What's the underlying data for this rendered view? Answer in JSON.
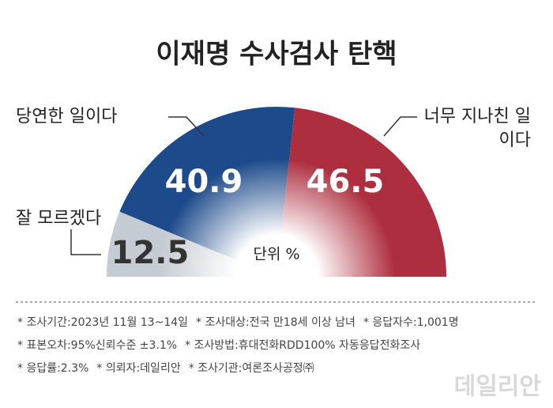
{
  "chart_data": {
    "type": "half-donut",
    "title": "이재명 수사검사 탄핵",
    "categories": [
      "잘 모르겠다",
      "당연한 일이다",
      "너무 지나친 일이다"
    ],
    "values": [
      12.5,
      40.9,
      46.5
    ],
    "colors": [
      "#c5cbd2",
      "#1d4a8a",
      "#ad2e3e"
    ],
    "unit_label": "단위 %",
    "notes": [
      [
        "* 조사기간:2023년 11월 13~14일",
        "* 조사대상:전국 만18세 이상 남녀",
        "* 응답자수:1,001명"
      ],
      [
        "* 표본오차:95%신뢰수준 ±3.1%",
        "* 조사방법:휴대전화RDD100% 자동응답전화조사"
      ],
      [
        "* 응답률:2.3%",
        "* 의뢰자:데일리안",
        "* 조사기관:여론조사공정㈜"
      ]
    ],
    "source": "데일리안"
  }
}
